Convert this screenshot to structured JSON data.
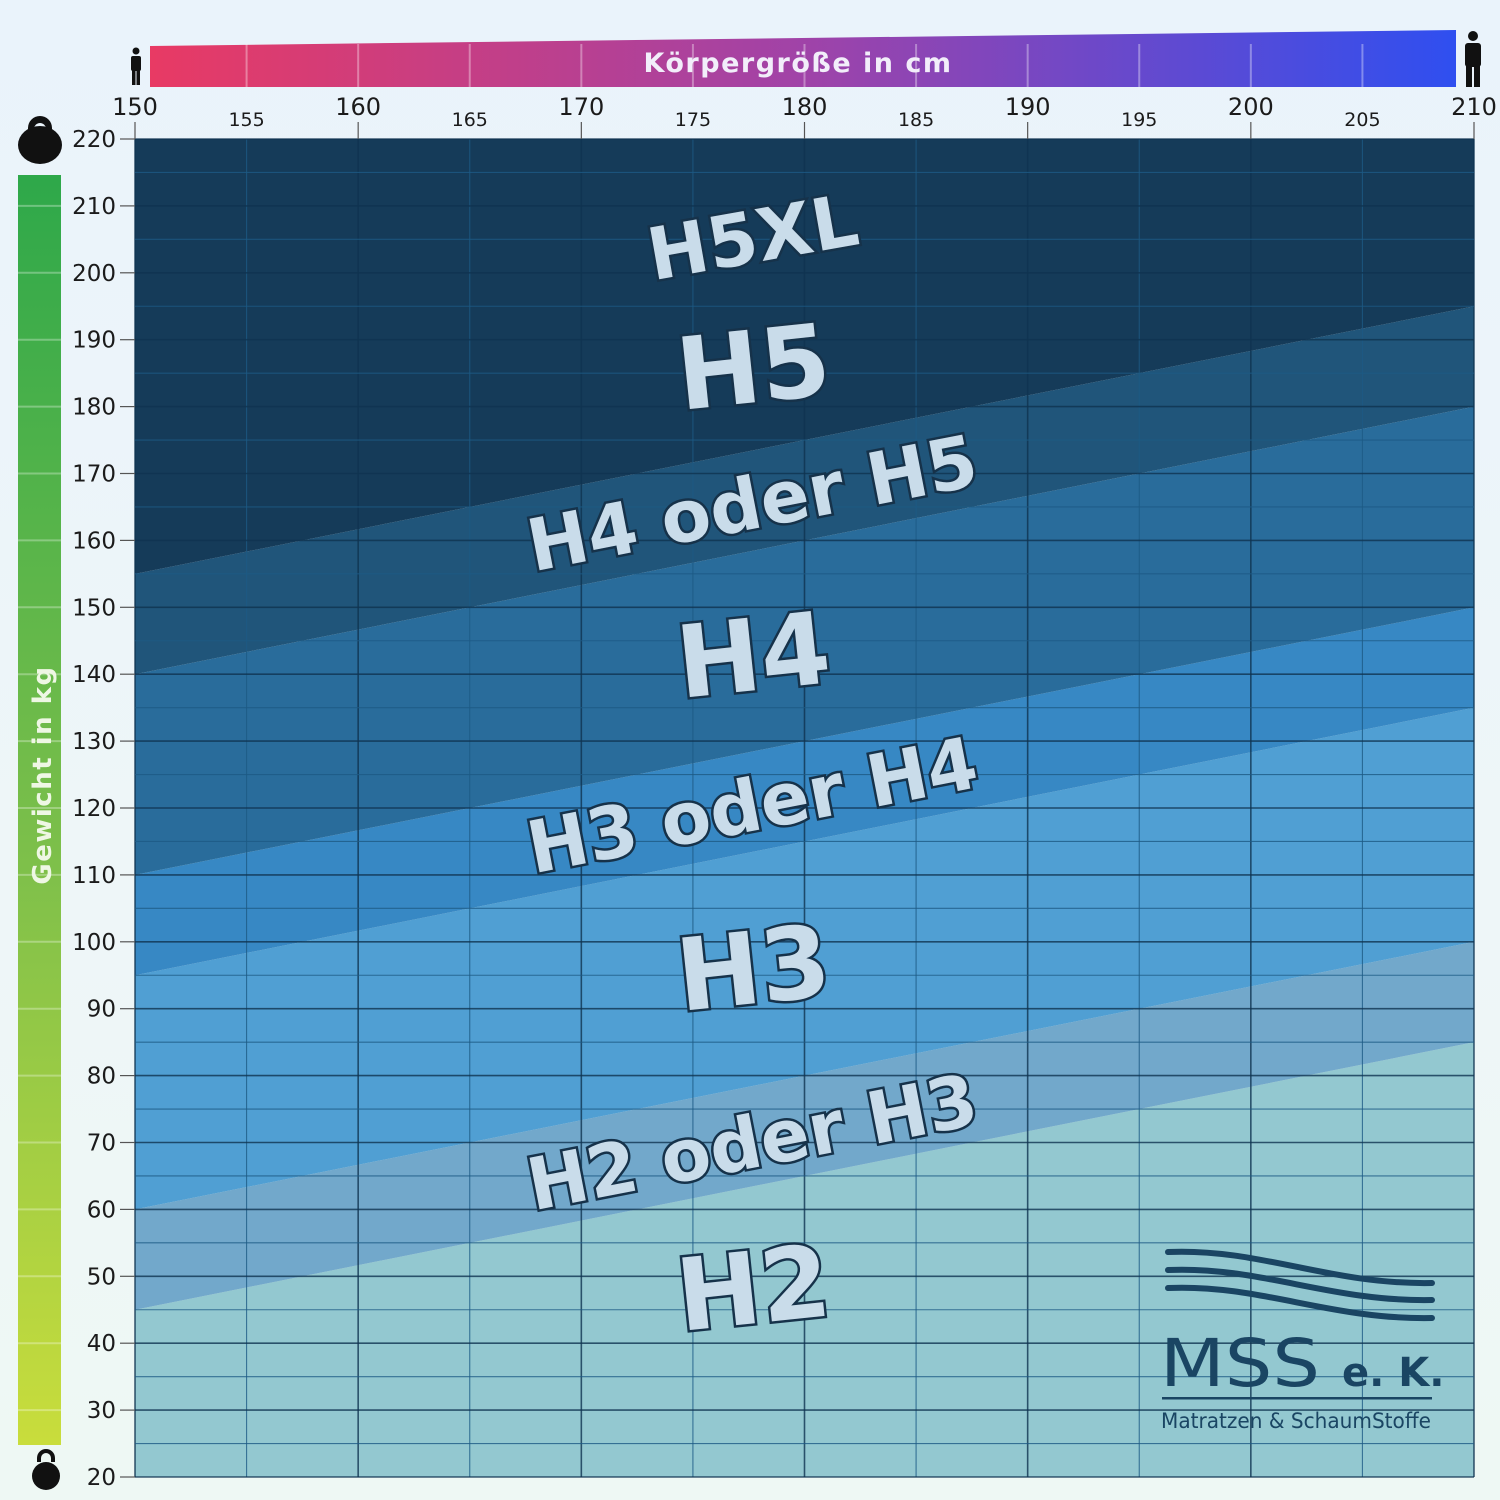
{
  "chart_data": {
    "type": "area",
    "title": "",
    "xlabel": "Körpergröße in cm",
    "ylabel": "Gewicht in kg",
    "xlim": [
      150,
      210
    ],
    "ylim": [
      20,
      220
    ],
    "x_major_ticks": [
      150,
      160,
      170,
      180,
      190,
      200,
      210
    ],
    "x_minor_ticks": [
      155,
      165,
      175,
      185,
      195,
      205
    ],
    "y_ticks": [
      20,
      30,
      40,
      50,
      60,
      70,
      80,
      90,
      100,
      110,
      120,
      130,
      140,
      150,
      160,
      170,
      180,
      190,
      200,
      210,
      220
    ],
    "grid": true,
    "boundaries": [
      {
        "below": "H2",
        "above": "H2 oder H3",
        "kg_at_150": 45,
        "kg_at_210": 85
      },
      {
        "below": "H2 oder H3",
        "above": "H3",
        "kg_at_150": 60,
        "kg_at_210": 100
      },
      {
        "below": "H3",
        "above": "H3 oder H4",
        "kg_at_150": 95,
        "kg_at_210": 135
      },
      {
        "below": "H3 oder H4",
        "above": "H4",
        "kg_at_150": 110,
        "kg_at_210": 150
      },
      {
        "below": "H4",
        "above": "H4 oder H5",
        "kg_at_150": 140,
        "kg_at_210": 180
      },
      {
        "below": "H4 oder H5",
        "above": "H5",
        "kg_at_150": 155,
        "kg_at_210": 195
      }
    ],
    "zones": [
      {
        "label": "H2",
        "color": "#9bd3dc"
      },
      {
        "label": "H2 oder H3",
        "color": "#79b2d6"
      },
      {
        "label": "H3",
        "color": "#55a8df"
      },
      {
        "label": "H3 oder H4",
        "color": "#3a90cf"
      },
      {
        "label": "H4",
        "color": "#2c72a4"
      },
      {
        "label": "H4 oder H5",
        "color": "#225a81"
      },
      {
        "label": "H5",
        "color": "#173f5e"
      }
    ],
    "top_label": "H5XL"
  },
  "height_bar": {
    "label": "Körpergröße in cm",
    "color_start": "#e83a64",
    "color_end": "#2f4ff0",
    "icon_left": "person-small-icon",
    "icon_right": "person-tall-icon"
  },
  "weight_bar": {
    "label": "Gewicht in kg",
    "color_top": "#2ea84a",
    "color_bottom": "#c9dd3c",
    "icon_top": "kettlebell-large-icon",
    "icon_bottom": "kettlebell-small-icon"
  },
  "logo": {
    "name": "MSS",
    "suffix": "e. K.",
    "tagline": "Matratzen & SchaumStoffe",
    "color": "#1a4563"
  }
}
